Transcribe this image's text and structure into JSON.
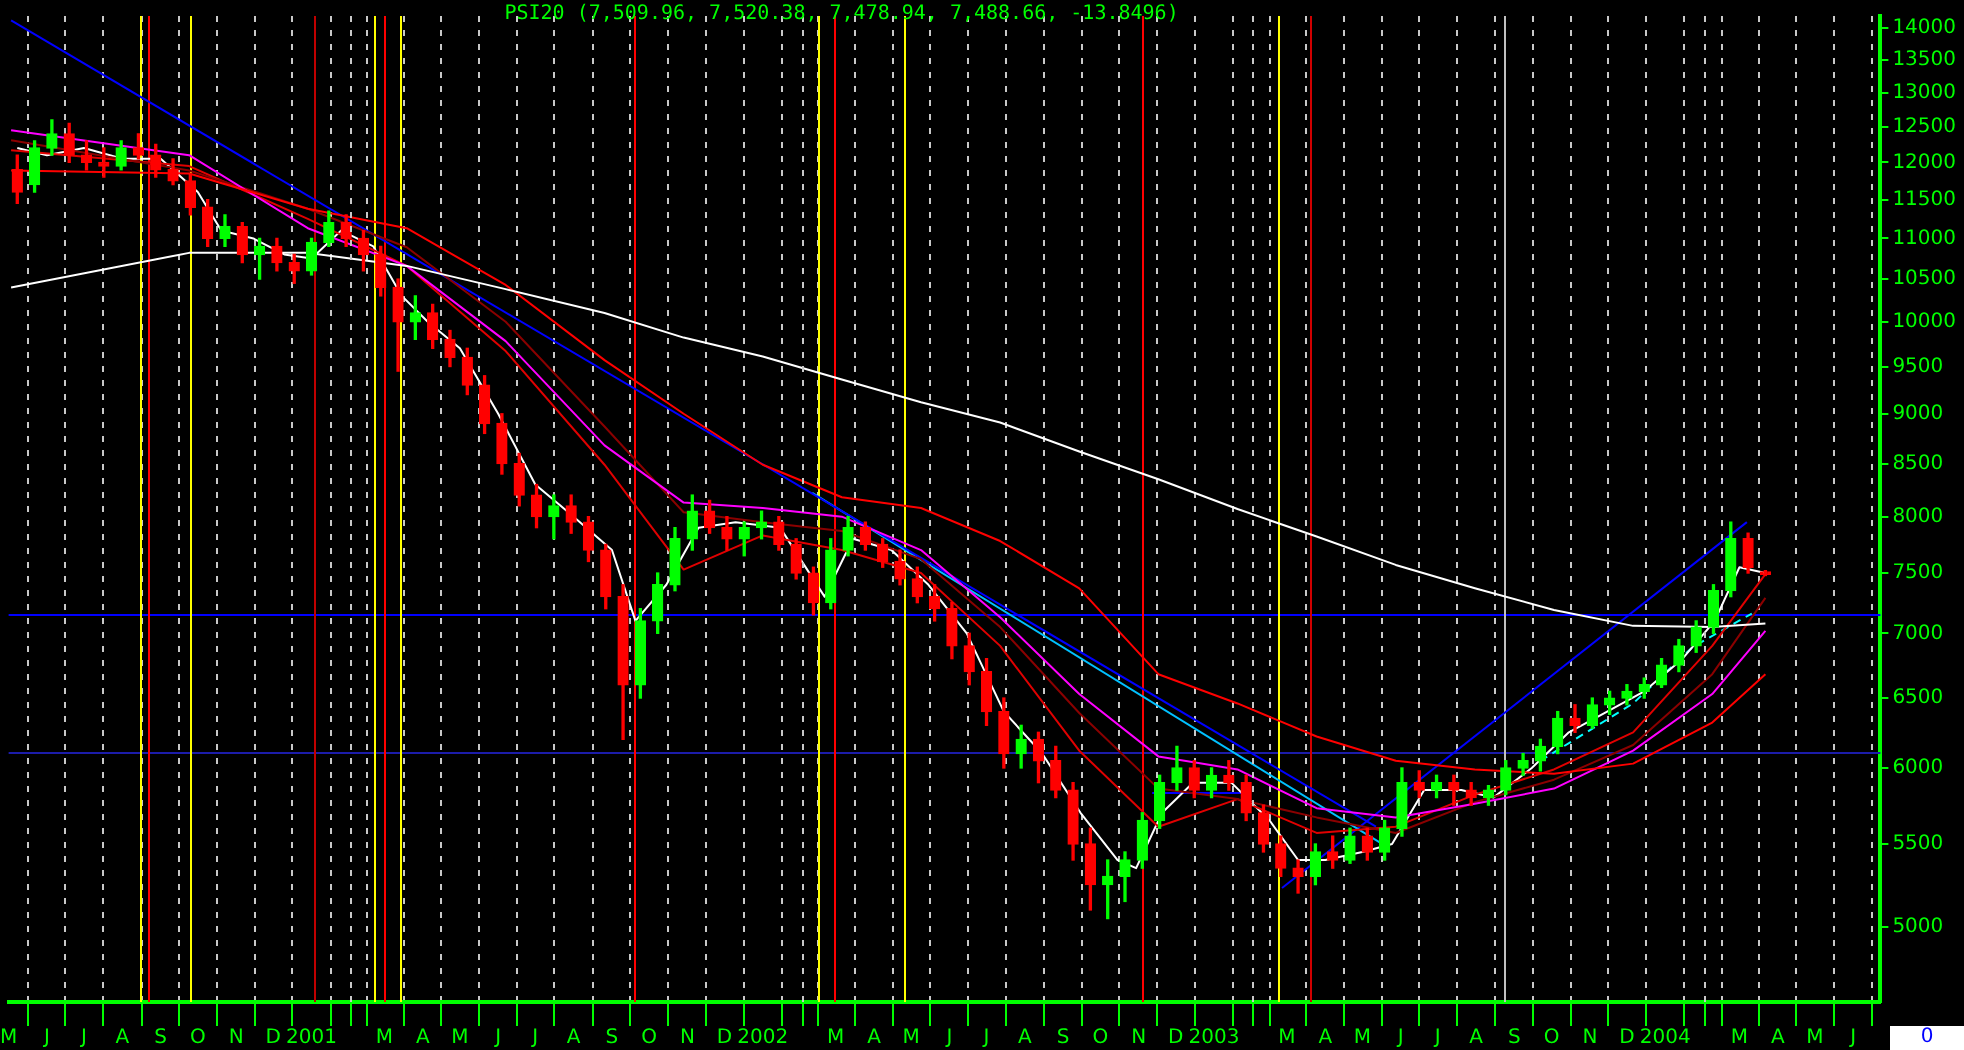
{
  "chart_data": {
    "type": "candlestick",
    "title": "PSI20 (7,509.96, 7,520.38, 7,478.94, 7,488.66, -13.8496)",
    "annotations": [
      "0"
    ],
    "xlim": [
      "2000-05-01",
      "2004-06-23"
    ],
    "xticks": [
      {
        "value": "2000-05-01",
        "label": "M"
      },
      {
        "value": "2000-06-01",
        "label": "J"
      },
      {
        "value": "2000-07-01",
        "label": "J"
      },
      {
        "value": "2000-08-01",
        "label": "A"
      },
      {
        "value": "2000-09-01",
        "label": "S"
      },
      {
        "value": "2000-10-01",
        "label": "O"
      },
      {
        "value": "2000-11-01",
        "label": "N"
      },
      {
        "value": "2000-12-01",
        "label": "D"
      },
      {
        "value": "2001-01-01",
        "label": "2001"
      },
      {
        "value": "2001-02-01",
        "label": null
      },
      {
        "value": "2001-03-01",
        "label": "M"
      },
      {
        "value": "2001-04-01",
        "label": "A"
      },
      {
        "value": "2001-05-01",
        "label": "M"
      },
      {
        "value": "2001-06-01",
        "label": "J"
      },
      {
        "value": "2001-07-01",
        "label": "J"
      },
      {
        "value": "2001-08-01",
        "label": "A"
      },
      {
        "value": "2001-09-01",
        "label": "S"
      },
      {
        "value": "2001-10-01",
        "label": "O"
      },
      {
        "value": "2001-11-01",
        "label": "N"
      },
      {
        "value": "2001-12-01",
        "label": "D"
      },
      {
        "value": "2002-01-01",
        "label": "2002"
      },
      {
        "value": "2002-02-01",
        "label": null
      },
      {
        "value": "2002-03-01",
        "label": "M"
      },
      {
        "value": "2002-04-01",
        "label": "A"
      },
      {
        "value": "2002-05-01",
        "label": "M"
      },
      {
        "value": "2002-06-01",
        "label": "J"
      },
      {
        "value": "2002-07-01",
        "label": "J"
      },
      {
        "value": "2002-08-01",
        "label": "A"
      },
      {
        "value": "2002-09-01",
        "label": "S"
      },
      {
        "value": "2002-10-01",
        "label": "O"
      },
      {
        "value": "2002-11-01",
        "label": "N"
      },
      {
        "value": "2002-12-01",
        "label": "D"
      },
      {
        "value": "2003-01-01",
        "label": "2003"
      },
      {
        "value": "2003-02-01",
        "label": null
      },
      {
        "value": "2003-03-01",
        "label": "M"
      },
      {
        "value": "2003-04-01",
        "label": "A"
      },
      {
        "value": "2003-05-01",
        "label": "M"
      },
      {
        "value": "2003-06-01",
        "label": "J"
      },
      {
        "value": "2003-07-01",
        "label": "J"
      },
      {
        "value": "2003-08-01",
        "label": "A"
      },
      {
        "value": "2003-09-01",
        "label": "S"
      },
      {
        "value": "2003-10-01",
        "label": "O"
      },
      {
        "value": "2003-11-01",
        "label": "N"
      },
      {
        "value": "2003-12-01",
        "label": "D"
      },
      {
        "value": "2004-01-01",
        "label": "2004"
      },
      {
        "value": "2004-02-01",
        "label": null
      },
      {
        "value": "2004-03-01",
        "label": "M"
      },
      {
        "value": "2004-04-01",
        "label": "A"
      },
      {
        "value": "2004-05-01",
        "label": "M"
      },
      {
        "value": "2004-06-01",
        "label": "J"
      }
    ],
    "ylim": [
      4590,
      14190
    ],
    "yticks": [
      5000,
      5500,
      6000,
      6500,
      7000,
      7500,
      8000,
      8500,
      9000,
      9500,
      10000,
      10500,
      11000,
      11500,
      12000,
      12500,
      13000,
      13500,
      14000
    ],
    "log": "y",
    "grid": "x",
    "series": [
      {
        "type": "candlestick",
        "color": "#00ff00",
        "x": [
          "2000-05-22",
          "2000-06-05",
          "2000-07-31",
          "2000-10-23",
          "2000-11-20",
          "2001-01-01",
          "2001-01-15",
          "2001-03-26",
          "2001-07-16",
          "2001-09-24",
          "2001-10-08",
          "2001-10-22",
          "2001-11-05",
          "2001-12-17",
          "2001-12-31",
          "2002-02-25",
          "2002-03-11",
          "2002-07-29",
          "2002-10-07",
          "2002-10-21",
          "2002-11-04",
          "2002-11-18",
          "2002-12-02",
          "2002-12-30",
          "2003-03-24",
          "2003-04-21",
          "2003-05-19",
          "2003-06-02",
          "2003-06-30",
          "2003-08-11",
          "2003-08-25",
          "2003-09-08",
          "2003-09-22",
          "2003-10-06",
          "2003-11-03",
          "2003-11-17",
          "2003-12-01",
          "2003-12-15",
          "2003-12-29",
          "2004-01-12",
          "2004-01-26",
          "2004-02-09",
          "2004-02-23"
        ],
        "ohlc": [
          [
            11700,
            12300,
            11600,
            12200
          ],
          [
            12200,
            12600,
            12100,
            12400
          ],
          [
            11950,
            12300,
            11900,
            12200
          ],
          [
            11000,
            11300,
            10900,
            11150
          ],
          [
            10800,
            11000,
            10500,
            10900
          ],
          [
            10600,
            11000,
            10550,
            10950
          ],
          [
            10950,
            11350,
            10900,
            11200
          ],
          [
            10000,
            10300,
            9800,
            10100
          ],
          [
            8000,
            8200,
            7800,
            8100
          ],
          [
            6600,
            7200,
            6500,
            7100
          ],
          [
            7100,
            7500,
            7000,
            7400
          ],
          [
            7400,
            7900,
            7350,
            7800
          ],
          [
            7800,
            8200,
            7700,
            8050
          ],
          [
            7800,
            7950,
            7650,
            7900
          ],
          [
            7900,
            8050,
            7800,
            7950
          ],
          [
            7250,
            7800,
            7200,
            7700
          ],
          [
            7700,
            8000,
            7650,
            7900
          ],
          [
            6100,
            6300,
            6000,
            6200
          ],
          [
            5250,
            5400,
            5050,
            5300
          ],
          [
            5300,
            5450,
            5150,
            5400
          ],
          [
            5400,
            5700,
            5350,
            5650
          ],
          [
            5650,
            5950,
            5600,
            5900
          ],
          [
            5900,
            6150,
            5850,
            6000
          ],
          [
            5850,
            6000,
            5800,
            5950
          ],
          [
            5300,
            5500,
            5250,
            5450
          ],
          [
            5400,
            5600,
            5380,
            5550
          ],
          [
            5450,
            5650,
            5400,
            5600
          ],
          [
            5600,
            6000,
            5550,
            5900
          ],
          [
            5850,
            5950,
            5800,
            5900
          ],
          [
            5800,
            5880,
            5750,
            5850
          ],
          [
            5850,
            6050,
            5820,
            6000
          ],
          [
            6000,
            6100,
            5950,
            6050
          ],
          [
            6050,
            6200,
            5980,
            6150
          ],
          [
            6150,
            6400,
            6100,
            6350
          ],
          [
            6300,
            6500,
            6280,
            6450
          ],
          [
            6450,
            6550,
            6380,
            6500
          ],
          [
            6500,
            6600,
            6450,
            6550
          ],
          [
            6550,
            6650,
            6500,
            6600
          ],
          [
            6600,
            6800,
            6580,
            6750
          ],
          [
            6750,
            6950,
            6700,
            6900
          ],
          [
            6900,
            7100,
            6850,
            7050
          ],
          [
            7050,
            7400,
            7000,
            7350
          ],
          [
            7350,
            7950,
            7300,
            7800
          ]
        ]
      },
      {
        "type": "candlestick",
        "color": "#ff0000",
        "x": [
          "2000-05-08",
          "2000-06-19",
          "2000-07-03",
          "2000-07-17",
          "2000-08-14",
          "2000-08-28",
          "2000-09-11",
          "2000-09-25",
          "2000-10-09",
          "2000-11-06",
          "2000-12-04",
          "2000-12-18",
          "2001-01-29",
          "2001-02-12",
          "2001-02-26",
          "2001-03-12",
          "2001-04-09",
          "2001-04-23",
          "2001-05-07",
          "2001-05-21",
          "2001-06-04",
          "2001-06-18",
          "2001-07-02",
          "2001-07-30",
          "2001-08-13",
          "2001-08-27",
          "2001-09-10",
          "2001-11-19",
          "2001-12-03",
          "2002-01-14",
          "2002-01-28",
          "2002-02-11",
          "2002-03-25",
          "2002-04-08",
          "2002-04-22",
          "2002-05-06",
          "2002-05-20",
          "2002-06-03",
          "2002-06-17",
          "2002-07-01",
          "2002-07-15",
          "2002-08-12",
          "2002-08-26",
          "2002-09-09",
          "2002-09-23",
          "2002-12-16",
          "2003-01-13",
          "2003-01-27",
          "2003-02-10",
          "2003-02-24",
          "2003-03-10",
          "2003-04-07",
          "2003-05-05",
          "2003-06-16",
          "2003-07-14",
          "2003-07-28",
          "2003-10-20",
          "2004-03-08",
          "2004-03-22"
        ],
        "ohlc": [
          [
            11900,
            12100,
            11450,
            11600
          ],
          [
            12400,
            12550,
            12000,
            12100
          ],
          [
            12100,
            12300,
            11900,
            12000
          ],
          [
            12000,
            12200,
            11800,
            11950
          ],
          [
            12200,
            12400,
            12050,
            12100
          ],
          [
            12100,
            12250,
            11800,
            11900
          ],
          [
            11900,
            12050,
            11700,
            11750
          ],
          [
            11750,
            11850,
            11300,
            11400
          ],
          [
            11400,
            11500,
            10900,
            11000
          ],
          [
            11150,
            11200,
            10700,
            10800
          ],
          [
            10900,
            11000,
            10600,
            10700
          ],
          [
            10700,
            10800,
            10450,
            10600
          ],
          [
            11200,
            11300,
            10900,
            11000
          ],
          [
            11000,
            11100,
            10600,
            10800
          ],
          [
            10800,
            10900,
            10300,
            10400
          ],
          [
            10400,
            10500,
            9450,
            10000
          ],
          [
            10100,
            10200,
            9700,
            9800
          ],
          [
            9800,
            9900,
            9500,
            9600
          ],
          [
            9600,
            9700,
            9200,
            9300
          ],
          [
            9300,
            9400,
            8800,
            8900
          ],
          [
            8900,
            9000,
            8400,
            8500
          ],
          [
            8500,
            8600,
            8100,
            8200
          ],
          [
            8200,
            8300,
            7900,
            8000
          ],
          [
            8100,
            8200,
            7850,
            7950
          ],
          [
            7950,
            8000,
            7600,
            7700
          ],
          [
            7700,
            7750,
            7200,
            7300
          ],
          [
            7300,
            7400,
            6200,
            6600
          ],
          [
            8050,
            8150,
            7850,
            7900
          ],
          [
            7900,
            8000,
            7700,
            7800
          ],
          [
            7950,
            8000,
            7700,
            7750
          ],
          [
            7750,
            7800,
            7450,
            7500
          ],
          [
            7500,
            7550,
            7150,
            7250
          ],
          [
            7900,
            7950,
            7700,
            7750
          ],
          [
            7750,
            7800,
            7550,
            7600
          ],
          [
            7600,
            7700,
            7400,
            7450
          ],
          [
            7450,
            7550,
            7250,
            7300
          ],
          [
            7300,
            7400,
            7100,
            7200
          ],
          [
            7200,
            7250,
            6800,
            6900
          ],
          [
            6900,
            7000,
            6600,
            6700
          ],
          [
            6700,
            6800,
            6300,
            6400
          ],
          [
            6400,
            6500,
            6000,
            6100
          ],
          [
            6200,
            6250,
            5900,
            6050
          ],
          [
            6050,
            6150,
            5800,
            5850
          ],
          [
            5850,
            5900,
            5400,
            5500
          ],
          [
            5500,
            5600,
            5100,
            5250
          ],
          [
            6000,
            6050,
            5800,
            5850
          ],
          [
            5950,
            6050,
            5850,
            5900
          ],
          [
            5900,
            5950,
            5650,
            5700
          ],
          [
            5700,
            5750,
            5450,
            5500
          ],
          [
            5500,
            5550,
            5300,
            5350
          ],
          [
            5350,
            5400,
            5200,
            5300
          ],
          [
            5450,
            5550,
            5350,
            5400
          ],
          [
            5550,
            5600,
            5400,
            5450
          ],
          [
            5900,
            5980,
            5800,
            5850
          ],
          [
            5900,
            5950,
            5750,
            5850
          ],
          [
            5850,
            5900,
            5750,
            5800
          ],
          [
            6350,
            6450,
            6250,
            6300
          ],
          [
            7800,
            7850,
            7500,
            7550
          ],
          [
            7509.96,
            7520.38,
            7478.94,
            7488.66
          ]
        ]
      },
      {
        "type": "line",
        "color": "#ffffff",
        "x": [
          "2000-05-03",
          "2000-09-24",
          "2000-12-29",
          "2001-03-19",
          "2001-06-07",
          "2001-08-26",
          "2001-10-29",
          "2002-01-01",
          "2002-03-06",
          "2002-05-09",
          "2002-07-12",
          "2002-09-14",
          "2002-11-17",
          "2003-01-20",
          "2003-03-25",
          "2003-05-28",
          "2003-07-31",
          "2003-10-03",
          "2003-12-06",
          "2004-02-08",
          "2004-03-22"
        ],
        "values": [
          10400,
          10820,
          10820,
          10660,
          10380,
          10100,
          9820,
          9610,
          9360,
          9120,
          8910,
          8620,
          8350,
          8070,
          7820,
          7570,
          7370,
          7190,
          7060,
          7050,
          7080
        ]
      },
      {
        "type": "line",
        "color": "#ff0000",
        "x": [
          "2000-05-03",
          "2000-09-24",
          "2000-12-29",
          "2001-03-19",
          "2001-06-07",
          "2001-08-26",
          "2001-10-29",
          "2002-01-01",
          "2002-03-06",
          "2002-05-09",
          "2002-07-12",
          "2002-09-14",
          "2002-11-17",
          "2003-01-20",
          "2003-03-25",
          "2003-05-28",
          "2003-07-31",
          "2003-10-03",
          "2003-12-06",
          "2004-02-08",
          "2004-03-22"
        ],
        "values": [
          11890,
          11850,
          11380,
          11130,
          10430,
          9570,
          9000,
          8490,
          8180,
          8080,
          7780,
          7370,
          6680,
          6460,
          6220,
          6050,
          5990,
          5960,
          6030,
          6320,
          6680
        ]
      },
      {
        "type": "line",
        "color": "#ff00ff",
        "x": [
          "2000-05-03",
          "2000-09-24",
          "2000-12-29",
          "2001-03-19",
          "2001-06-07",
          "2001-08-26",
          "2001-10-29",
          "2002-01-01",
          "2002-03-06",
          "2002-05-09",
          "2002-07-12",
          "2002-09-14",
          "2002-11-17",
          "2003-01-20",
          "2003-03-25",
          "2003-05-28",
          "2003-07-31",
          "2003-10-03",
          "2003-12-06",
          "2004-02-08",
          "2004-03-22"
        ],
        "values": [
          12450,
          12100,
          11130,
          10660,
          9780,
          8680,
          8130,
          8080,
          8000,
          7700,
          7130,
          6530,
          6080,
          5990,
          5730,
          5670,
          5760,
          5860,
          6120,
          6530,
          7020
        ]
      },
      {
        "type": "line",
        "color": "#8b0000",
        "x": [
          "2000-05-03",
          "2000-09-24",
          "2000-12-29",
          "2001-03-19",
          "2001-06-07",
          "2001-08-26",
          "2001-10-29",
          "2002-01-01",
          "2002-03-06",
          "2002-05-09",
          "2002-07-12",
          "2002-09-14",
          "2002-11-17",
          "2003-01-20",
          "2003-03-25",
          "2003-05-28",
          "2003-07-31",
          "2003-10-03",
          "2003-12-06",
          "2004-02-08",
          "2004-03-22"
        ],
        "values": [
          12310,
          11890,
          11380,
          10890,
          10000,
          8870,
          8040,
          7950,
          7870,
          7620,
          7050,
          6390,
          5860,
          5790,
          5670,
          5570,
          5770,
          5920,
          6160,
          6680,
          7290
        ]
      },
      {
        "type": "line",
        "color": "#e00000",
        "x": [
          "2000-05-03",
          "2000-09-24",
          "2000-12-29",
          "2001-03-19",
          "2001-06-07",
          "2001-08-26",
          "2001-10-29",
          "2002-01-01",
          "2002-03-06",
          "2002-05-09",
          "2002-07-12",
          "2002-09-14",
          "2002-11-17",
          "2003-01-20",
          "2003-03-25",
          "2003-05-28",
          "2003-07-31",
          "2003-10-03",
          "2003-12-06",
          "2004-02-08",
          "2004-03-22"
        ],
        "values": [
          12170,
          11950,
          11250,
          10660,
          9670,
          8490,
          7530,
          7830,
          7700,
          7500,
          6900,
          6120,
          5610,
          5790,
          5570,
          5610,
          5820,
          5990,
          6250,
          6900,
          7490
        ]
      },
      {
        "type": "line",
        "color": "#ffffff",
        "x": [
          "2000-05-08",
          "2000-06-01",
          "2000-07-01",
          "2000-08-01",
          "2000-09-01",
          "2000-10-01",
          "2000-10-20",
          "2000-11-15",
          "2000-12-10",
          "2001-01-01",
          "2001-01-25",
          "2001-02-20",
          "2001-03-15",
          "2001-04-05",
          "2001-05-01",
          "2001-06-01",
          "2001-07-01",
          "2001-08-01",
          "2001-09-01",
          "2001-09-20",
          "2001-10-15",
          "2001-11-10",
          "2001-12-10",
          "2002-01-15",
          "2002-02-20",
          "2002-03-15",
          "2002-04-15",
          "2002-05-15",
          "2002-06-15",
          "2002-07-15",
          "2002-08-15",
          "2002-09-15",
          "2002-10-15",
          "2002-10-30",
          "2002-11-20",
          "2002-12-15",
          "2003-01-15",
          "2003-02-15",
          "2003-03-10",
          "2003-04-01",
          "2003-05-01",
          "2003-05-25",
          "2003-06-20",
          "2003-07-20",
          "2003-08-15",
          "2003-09-15",
          "2003-10-15",
          "2003-11-15",
          "2003-12-15",
          "2004-01-15",
          "2004-02-10",
          "2004-03-01",
          "2004-03-22"
        ],
        "values": [
          12200,
          12100,
          12200,
          12050,
          12050,
          11600,
          11100,
          11000,
          10800,
          10750,
          11100,
          10900,
          10300,
          10000,
          9700,
          9000,
          8300,
          8000,
          7700,
          7100,
          7400,
          7900,
          7950,
          7900,
          7300,
          7800,
          7700,
          7400,
          7000,
          6400,
          6100,
          5700,
          5400,
          5350,
          5700,
          5900,
          5900,
          5650,
          5400,
          5400,
          5450,
          5500,
          5850,
          5850,
          5800,
          6000,
          6250,
          6400,
          6550,
          6800,
          7100,
          7550,
          7500
        ]
      },
      {
        "type": "line",
        "color": "#00ffff",
        "line_style": "dashed",
        "x": [
          "2003-09-22",
          "2003-12-06",
          "2004-01-23",
          "2004-03-11"
        ],
        "values": [
          6050,
          6460,
          6890,
          7160
        ]
      },
      {
        "type": "line",
        "color": "#0000ff",
        "x": [
          "2000-05-03",
          "2003-05-12"
        ],
        "values": [
          14120,
          5610
        ]
      },
      {
        "type": "line",
        "color": "#00c0ff",
        "x": [
          "2002-02-10",
          "2003-05-15"
        ],
        "values": [
          8220,
          5510
        ]
      },
      {
        "type": "line",
        "color": "#0000ff",
        "x": [
          "2003-02-25",
          "2004-03-07"
        ],
        "values": [
          5230,
          7950
        ]
      },
      {
        "type": "line",
        "color": "#0000ff",
        "x": [
          "2002-11-12",
          "2003-01-25"
        ],
        "values": [
          5830,
          5830
        ]
      }
    ],
    "ref_lines": [
      {
        "axis": "y",
        "value": 7160,
        "color": "#0000ff"
      },
      {
        "axis": "y",
        "value": 6110,
        "color": "#1c1caa"
      },
      {
        "axis": "x",
        "value": "2000-08-15",
        "color": "#ffff00"
      },
      {
        "axis": "x",
        "value": "2000-08-21",
        "color": "#ff0000"
      },
      {
        "axis": "x",
        "value": "2000-09-25",
        "color": "#ffff00"
      },
      {
        "axis": "x",
        "value": "2001-01-03",
        "color": "#c00000"
      },
      {
        "axis": "x",
        "value": "2001-02-20",
        "color": "#ffff00"
      },
      {
        "axis": "x",
        "value": "2001-02-28",
        "color": "#ff0000"
      },
      {
        "axis": "x",
        "value": "2001-03-14",
        "color": "#ffff00"
      },
      {
        "axis": "x",
        "value": "2001-09-19",
        "color": "#ff0000"
      },
      {
        "axis": "x",
        "value": "2002-02-15",
        "color": "#ffff00"
      },
      {
        "axis": "x",
        "value": "2002-02-28",
        "color": "#ff0000"
      },
      {
        "axis": "x",
        "value": "2002-04-25",
        "color": "#ffff00"
      },
      {
        "axis": "x",
        "value": "2002-11-03",
        "color": "#ff0000"
      },
      {
        "axis": "x",
        "value": "2003-02-21",
        "color": "#ffff00"
      },
      {
        "axis": "x",
        "value": "2003-03-20",
        "color": "#d00000"
      },
      {
        "axis": "x",
        "value": "2003-08-23",
        "color": "#c0c0c0"
      }
    ]
  }
}
